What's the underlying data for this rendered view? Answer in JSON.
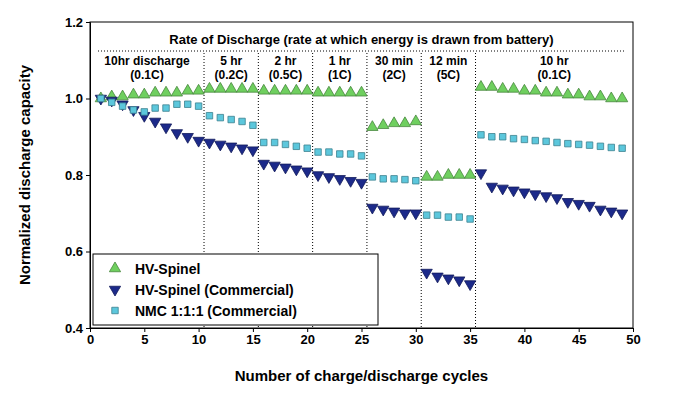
{
  "chart_data": {
    "type": "scatter",
    "title": "Rate of Discharge (rate at which energy is drawn from battery)",
    "x_label": "Number of charge/discharge cycles",
    "y_label": "Normalized discharge capacity",
    "xlim": [
      0,
      50
    ],
    "xticks": [
      0,
      5,
      10,
      15,
      20,
      25,
      30,
      35,
      40,
      45,
      50
    ],
    "ylim": [
      0.4,
      1.2
    ],
    "yticks": [
      0.4,
      0.6,
      0.8,
      {
        "value": 1,
        "label": "1.0"
      },
      1.2
    ],
    "grid": false,
    "legend": "lower left",
    "phases": [
      {
        "label": "10hr discharge",
        "rate": "(0.1C)",
        "from": 0,
        "to": 10.5
      },
      {
        "label": "5 hr",
        "rate": "(0.2C)",
        "from": 10.5,
        "to": 15.5
      },
      {
        "label": "2 hr",
        "rate": "(0.5C)",
        "from": 15.5,
        "to": 20.5
      },
      {
        "label": "1 hr",
        "rate": "(1C)",
        "from": 20.5,
        "to": 25.5
      },
      {
        "label": "30 min",
        "rate": "(2C)",
        "from": 25.5,
        "to": 30.5
      },
      {
        "label": "12 min",
        "rate": "(5C)",
        "from": 30.5,
        "to": 35.5
      },
      {
        "label": "10 hr",
        "rate": "(0.1C)",
        "from": 35.5,
        "to": 50
      }
    ],
    "x": [
      1,
      2,
      3,
      4,
      5,
      6,
      7,
      8,
      9,
      10,
      11,
      12,
      13,
      14,
      15,
      16,
      17,
      18,
      19,
      20,
      21,
      22,
      23,
      24,
      25,
      26,
      27,
      28,
      29,
      30,
      31,
      32,
      33,
      34,
      35,
      36,
      37,
      38,
      39,
      40,
      41,
      42,
      43,
      44,
      45,
      46,
      47,
      48,
      49
    ],
    "series": [
      {
        "name": "HV-Spinel",
        "color": "#6fcf5f",
        "marker": "triangle-up",
        "values": [
          1.0,
          1.005,
          1.005,
          1.01,
          1.01,
          1.015,
          1.015,
          1.015,
          1.02,
          1.02,
          1.025,
          1.025,
          1.025,
          1.025,
          1.025,
          1.02,
          1.02,
          1.02,
          1.02,
          1.02,
          1.015,
          1.015,
          1.015,
          1.015,
          1.015,
          0.925,
          0.93,
          0.935,
          0.935,
          0.94,
          0.795,
          0.795,
          0.8,
          0.8,
          0.8,
          1.03,
          1.03,
          1.025,
          1.025,
          1.02,
          1.02,
          1.015,
          1.015,
          1.01,
          1.01,
          1.005,
          1.005,
          1.0,
          1.0
        ]
      },
      {
        "name": "HV-Spinel (Commercial)",
        "color": "#1c2a8a",
        "marker": "triangle-down",
        "values": [
          1.0,
          0.995,
          0.985,
          0.97,
          0.955,
          0.94,
          0.925,
          0.91,
          0.9,
          0.89,
          0.885,
          0.88,
          0.875,
          0.87,
          0.865,
          0.83,
          0.825,
          0.82,
          0.815,
          0.81,
          0.8,
          0.795,
          0.79,
          0.785,
          0.78,
          0.715,
          0.71,
          0.705,
          0.7,
          0.7,
          0.545,
          0.535,
          0.53,
          0.525,
          0.515,
          0.805,
          0.77,
          0.765,
          0.76,
          0.755,
          0.75,
          0.745,
          0.74,
          0.73,
          0.725,
          0.72,
          0.71,
          0.705,
          0.7
        ]
      },
      {
        "name": "NMC 1:1:1 (Commercial)",
        "color": "#5cc7dc",
        "marker": "square",
        "values": [
          1.0,
          0.99,
          0.98,
          0.97,
          0.965,
          0.975,
          0.975,
          0.985,
          0.985,
          0.98,
          0.955,
          0.95,
          0.945,
          0.94,
          0.93,
          0.885,
          0.885,
          0.88,
          0.875,
          0.87,
          0.86,
          0.86,
          0.855,
          0.855,
          0.85,
          0.795,
          0.79,
          0.79,
          0.788,
          0.785,
          0.695,
          0.695,
          0.69,
          0.69,
          0.685,
          0.905,
          0.9,
          0.9,
          0.895,
          0.893,
          0.89,
          0.888,
          0.885,
          0.882,
          0.88,
          0.878,
          0.875,
          0.872,
          0.87
        ]
      }
    ]
  }
}
